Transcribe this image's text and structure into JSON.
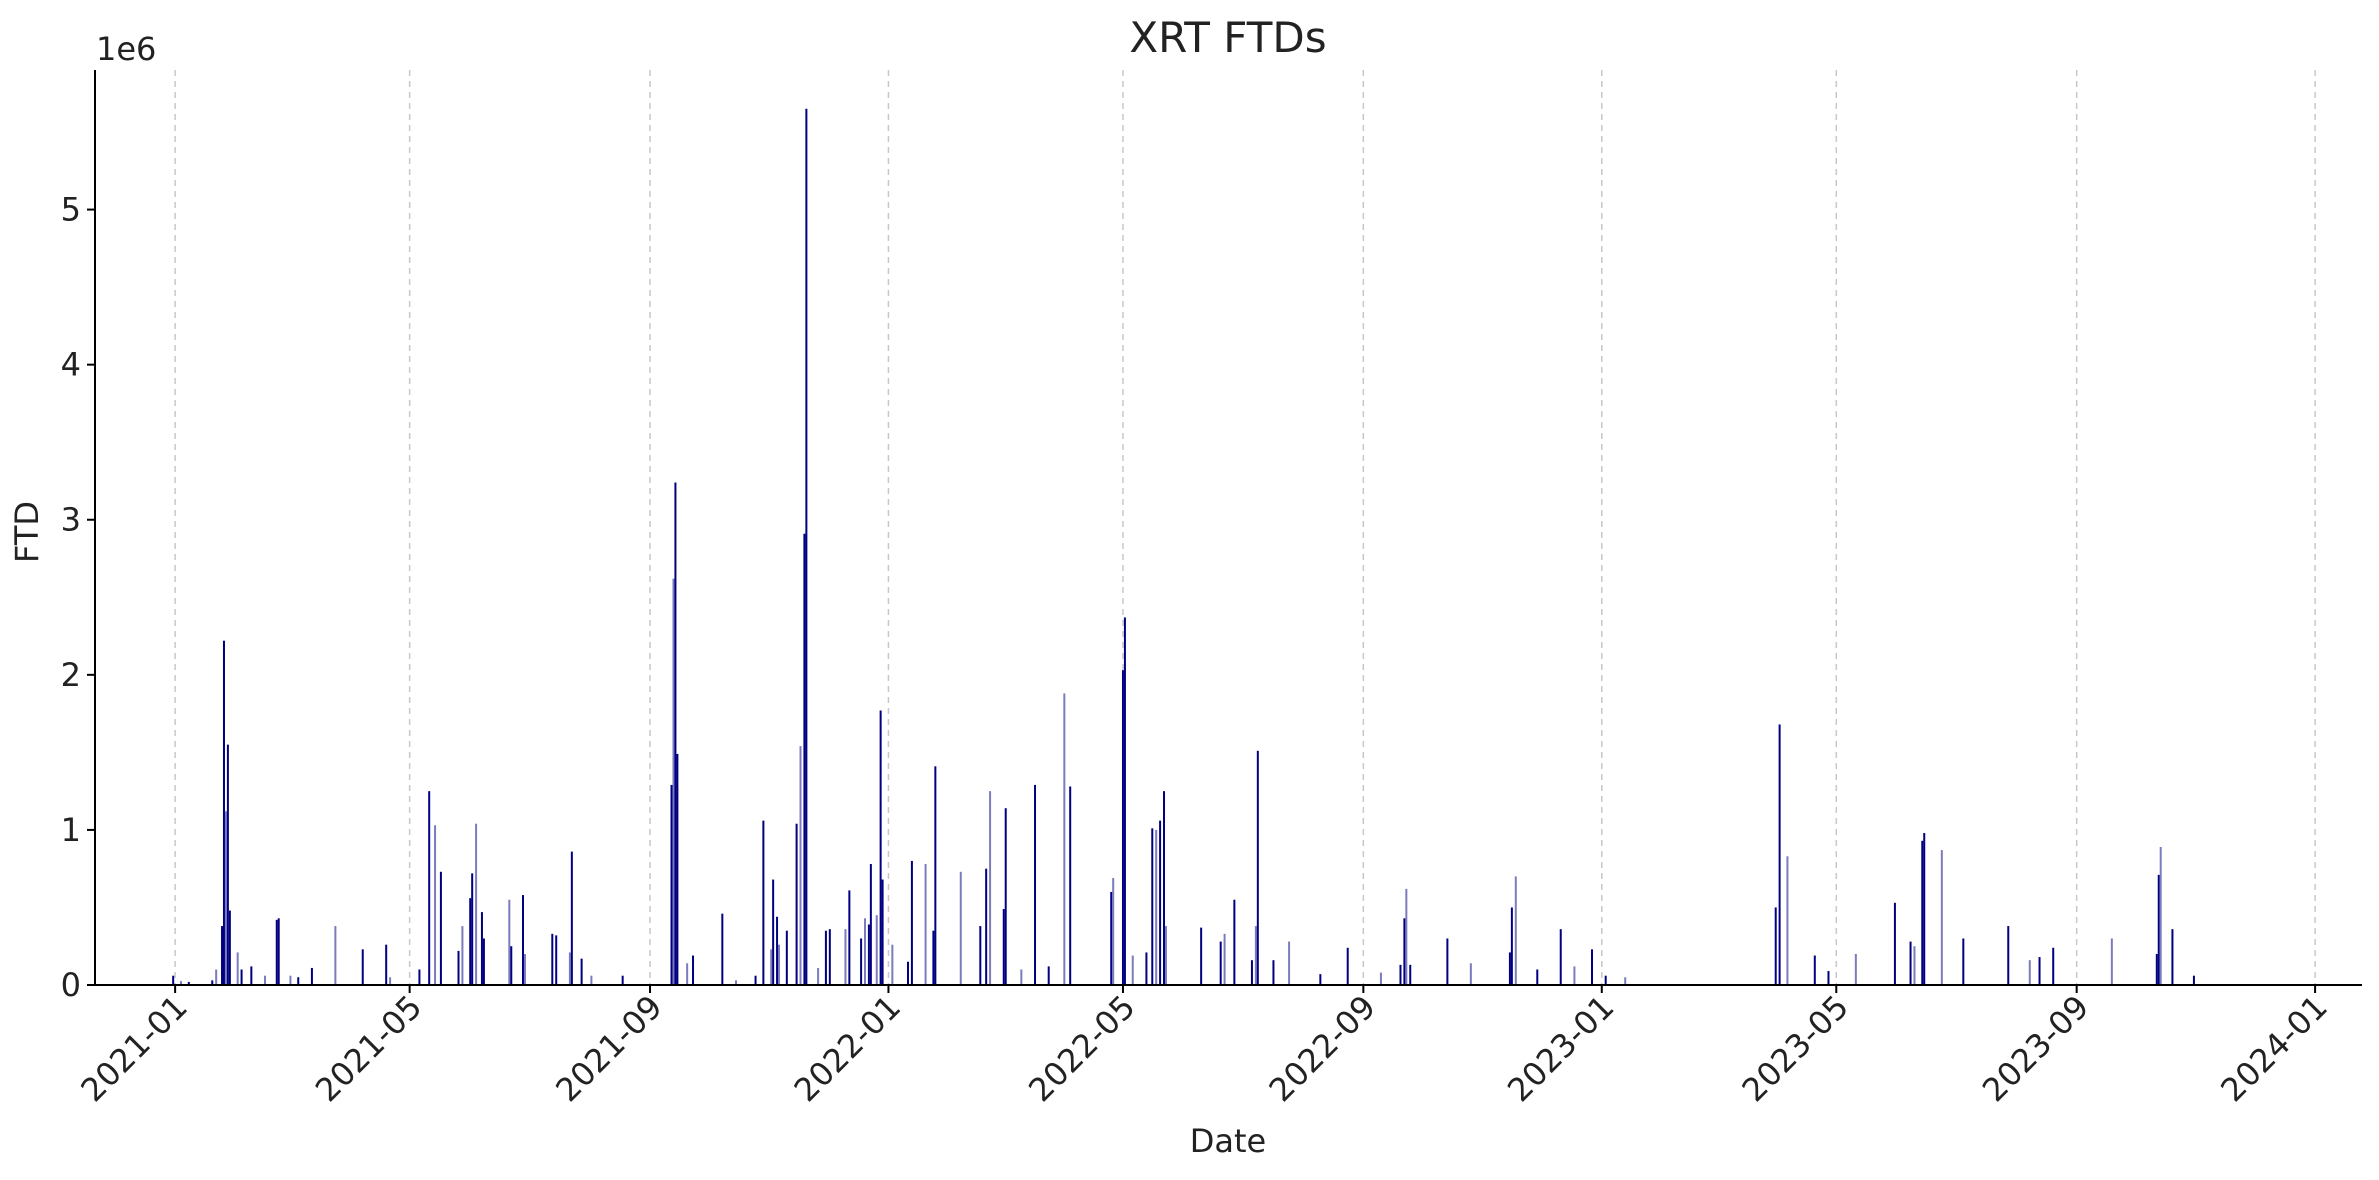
{
  "chart_data": {
    "type": "bar",
    "title": "XRT FTDs",
    "xlabel": "Date",
    "ylabel": "FTD",
    "y_offset_label": "1e6",
    "ylim": [
      0,
      5900000
    ],
    "xlim": [
      "2020-11-21",
      "2024-01-25"
    ],
    "y_ticks": [
      0,
      1000000,
      2000000,
      3000000,
      4000000,
      5000000
    ],
    "y_tick_labels": [
      "0",
      "1",
      "2",
      "3",
      "4",
      "5"
    ],
    "x_ticks": [
      "2021-01-01",
      "2021-05-01",
      "2021-09-01",
      "2022-01-01",
      "2022-05-01",
      "2022-09-01",
      "2023-01-01",
      "2023-05-01",
      "2023-09-01",
      "2024-01-01"
    ],
    "x_tick_labels": [
      "2021-01",
      "2021-05",
      "2021-09",
      "2022-01",
      "2022-05",
      "2022-09",
      "2023-01",
      "2023-05",
      "2023-09",
      "2024-01"
    ],
    "grid": "vertical dashed",
    "colors": {
      "bar_dark": "#000080",
      "bar_light": "#7b7bbd",
      "grid": "#c8c8c8",
      "axis": "#000000",
      "text": "#222222"
    },
    "series": [
      {
        "values": [
          [
            "2020-12-31",
            60000
          ],
          [
            "2021-01-04",
            25000
          ],
          [
            "2021-01-08",
            20000
          ],
          [
            "2021-01-20",
            30000
          ],
          [
            "2021-01-22",
            100000
          ],
          [
            "2021-01-25",
            380000
          ],
          [
            "2021-01-26",
            2220000
          ],
          [
            "2021-01-27",
            1120000
          ],
          [
            "2021-01-28",
            1550000
          ],
          [
            "2021-01-29",
            480000
          ],
          [
            "2021-02-02",
            210000
          ],
          [
            "2021-02-04",
            100000
          ],
          [
            "2021-02-09",
            120000
          ],
          [
            "2021-02-16",
            60000
          ],
          [
            "2021-02-22",
            420000
          ],
          [
            "2021-02-23",
            430000
          ],
          [
            "2021-03-01",
            60000
          ],
          [
            "2021-03-05",
            50000
          ],
          [
            "2021-03-12",
            110000
          ],
          [
            "2021-03-24",
            380000
          ],
          [
            "2021-04-07",
            230000
          ],
          [
            "2021-04-19",
            260000
          ],
          [
            "2021-04-21",
            50000
          ],
          [
            "2021-05-06",
            100000
          ],
          [
            "2021-05-11",
            1250000
          ],
          [
            "2021-05-14",
            1030000
          ],
          [
            "2021-05-17",
            730000
          ],
          [
            "2021-05-26",
            220000
          ],
          [
            "2021-05-28",
            380000
          ],
          [
            "2021-06-01",
            560000
          ],
          [
            "2021-06-02",
            720000
          ],
          [
            "2021-06-04",
            1040000
          ],
          [
            "2021-06-07",
            470000
          ],
          [
            "2021-06-08",
            300000
          ],
          [
            "2021-06-21",
            550000
          ],
          [
            "2021-06-22",
            250000
          ],
          [
            "2021-06-28",
            580000
          ],
          [
            "2021-06-29",
            200000
          ],
          [
            "2021-07-13",
            330000
          ],
          [
            "2021-07-15",
            320000
          ],
          [
            "2021-07-22",
            210000
          ],
          [
            "2021-07-23",
            860000
          ],
          [
            "2021-07-28",
            170000
          ],
          [
            "2021-08-02",
            60000
          ],
          [
            "2021-08-18",
            60000
          ],
          [
            "2021-09-12",
            1290000
          ],
          [
            "2021-09-13",
            2620000
          ],
          [
            "2021-09-14",
            3240000
          ],
          [
            "2021-09-15",
            1490000
          ],
          [
            "2021-09-20",
            140000
          ],
          [
            "2021-09-23",
            190000
          ],
          [
            "2021-10-08",
            460000
          ],
          [
            "2021-10-15",
            30000
          ],
          [
            "2021-10-25",
            60000
          ],
          [
            "2021-10-29",
            1060000
          ],
          [
            "2021-11-02",
            230000
          ],
          [
            "2021-11-03",
            680000
          ],
          [
            "2021-11-05",
            440000
          ],
          [
            "2021-11-06",
            260000
          ],
          [
            "2021-11-10",
            350000
          ],
          [
            "2021-11-15",
            1040000
          ],
          [
            "2021-11-17",
            1540000
          ],
          [
            "2021-11-19",
            2910000
          ],
          [
            "2021-11-20",
            5650000
          ],
          [
            "2021-11-26",
            110000
          ],
          [
            "2021-11-30",
            350000
          ],
          [
            "2021-12-02",
            360000
          ],
          [
            "2021-12-10",
            360000
          ],
          [
            "2021-12-12",
            610000
          ],
          [
            "2021-12-18",
            300000
          ],
          [
            "2021-12-20",
            430000
          ],
          [
            "2021-12-22",
            390000
          ],
          [
            "2021-12-23",
            780000
          ],
          [
            "2021-12-26",
            450000
          ],
          [
            "2021-12-28",
            1770000
          ],
          [
            "2021-12-29",
            680000
          ],
          [
            "2022-01-03",
            260000
          ],
          [
            "2022-01-11",
            150000
          ],
          [
            "2022-01-13",
            800000
          ],
          [
            "2022-01-20",
            780000
          ],
          [
            "2022-01-24",
            350000
          ],
          [
            "2022-01-25",
            1410000
          ],
          [
            "2022-02-07",
            730000
          ],
          [
            "2022-02-17",
            380000
          ],
          [
            "2022-02-20",
            750000
          ],
          [
            "2022-02-22",
            1250000
          ],
          [
            "2022-03-01",
            490000
          ],
          [
            "2022-03-02",
            1140000
          ],
          [
            "2022-03-10",
            100000
          ],
          [
            "2022-03-17",
            1290000
          ],
          [
            "2022-03-24",
            120000
          ],
          [
            "2022-04-01",
            1880000
          ],
          [
            "2022-04-04",
            1280000
          ],
          [
            "2022-04-25",
            600000
          ],
          [
            "2022-04-26",
            690000
          ],
          [
            "2022-05-01",
            2030000
          ],
          [
            "2022-05-02",
            2370000
          ],
          [
            "2022-05-06",
            190000
          ],
          [
            "2022-05-13",
            210000
          ],
          [
            "2022-05-16",
            1010000
          ],
          [
            "2022-05-18",
            1000000
          ],
          [
            "2022-05-20",
            1060000
          ],
          [
            "2022-05-22",
            1250000
          ],
          [
            "2022-05-23",
            380000
          ],
          [
            "2022-06-10",
            370000
          ],
          [
            "2022-06-20",
            280000
          ],
          [
            "2022-06-22",
            330000
          ],
          [
            "2022-06-27",
            550000
          ],
          [
            "2022-07-06",
            160000
          ],
          [
            "2022-07-08",
            380000
          ],
          [
            "2022-07-09",
            1510000
          ],
          [
            "2022-07-17",
            160000
          ],
          [
            "2022-07-25",
            280000
          ],
          [
            "2022-08-10",
            70000
          ],
          [
            "2022-08-24",
            240000
          ],
          [
            "2022-09-10",
            80000
          ],
          [
            "2022-09-20",
            130000
          ],
          [
            "2022-09-22",
            430000
          ],
          [
            "2022-09-23",
            620000
          ],
          [
            "2022-09-25",
            130000
          ],
          [
            "2022-10-14",
            300000
          ],
          [
            "2022-10-26",
            140000
          ],
          [
            "2022-11-15",
            210000
          ],
          [
            "2022-11-16",
            500000
          ],
          [
            "2022-11-18",
            700000
          ],
          [
            "2022-11-29",
            100000
          ],
          [
            "2022-12-11",
            360000
          ],
          [
            "2022-12-18",
            120000
          ],
          [
            "2022-12-27",
            230000
          ],
          [
            "2023-01-03",
            60000
          ],
          [
            "2023-01-13",
            50000
          ],
          [
            "2023-03-31",
            500000
          ],
          [
            "2023-04-02",
            1680000
          ],
          [
            "2023-04-06",
            830000
          ],
          [
            "2023-04-20",
            190000
          ],
          [
            "2023-04-27",
            90000
          ],
          [
            "2023-05-11",
            200000
          ],
          [
            "2023-05-31",
            530000
          ],
          [
            "2023-06-08",
            280000
          ],
          [
            "2023-06-10",
            250000
          ],
          [
            "2023-06-14",
            930000
          ],
          [
            "2023-06-15",
            980000
          ],
          [
            "2023-06-24",
            870000
          ],
          [
            "2023-07-05",
            300000
          ],
          [
            "2023-07-28",
            380000
          ],
          [
            "2023-08-08",
            160000
          ],
          [
            "2023-08-13",
            180000
          ],
          [
            "2023-08-20",
            240000
          ],
          [
            "2023-09-19",
            300000
          ],
          [
            "2023-10-12",
            200000
          ],
          [
            "2023-10-13",
            710000
          ],
          [
            "2023-10-14",
            890000
          ],
          [
            "2023-10-20",
            360000
          ],
          [
            "2023-10-31",
            60000
          ]
        ]
      }
    ]
  }
}
